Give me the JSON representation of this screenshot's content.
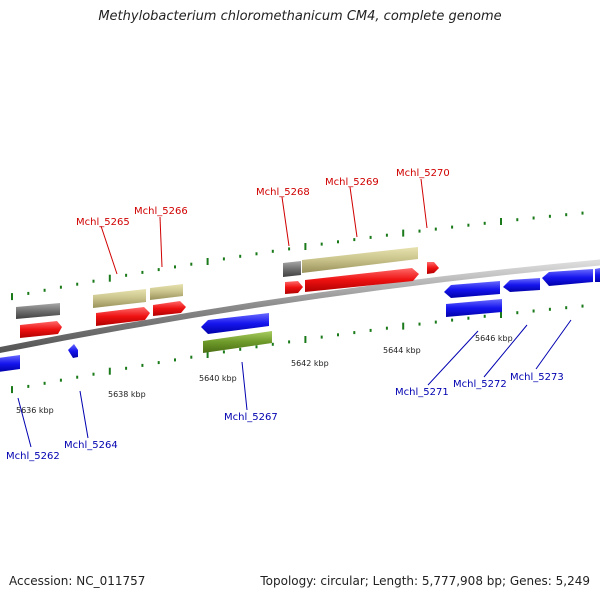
{
  "title": "Methylobacterium chloromethanicum CM4, complete genome",
  "footer": {
    "accession": "Accession: NC_011757",
    "topology": "Topology: circular; Length: 5,777,908 bp; Genes: 5,249"
  },
  "colors": {
    "forward_cds": "#ee1111",
    "reverse_cds": "#1515ee",
    "forward_gene": "#c8c28a",
    "reverse_gene": "#6e9a2a",
    "other": "#707070",
    "tick": "#1a7a1a",
    "backbone": "#888888",
    "label_top": "#d00000",
    "label_bottom": "#0000b0"
  },
  "scale_labels": [
    "5636 kbp",
    "5638 kbp",
    "5640 kbp",
    "5642 kbp",
    "5644 kbp",
    "5646 kbp"
  ],
  "top_labels": [
    "Mchl_5265",
    "Mchl_5266",
    "Mchl_5268",
    "Mchl_5269",
    "Mchl_5270"
  ],
  "bottom_labels": [
    "Mchl_5262",
    "Mchl_5264",
    "Mchl_5267",
    "Mchl_5271",
    "Mchl_5272",
    "Mchl_5273"
  ]
}
